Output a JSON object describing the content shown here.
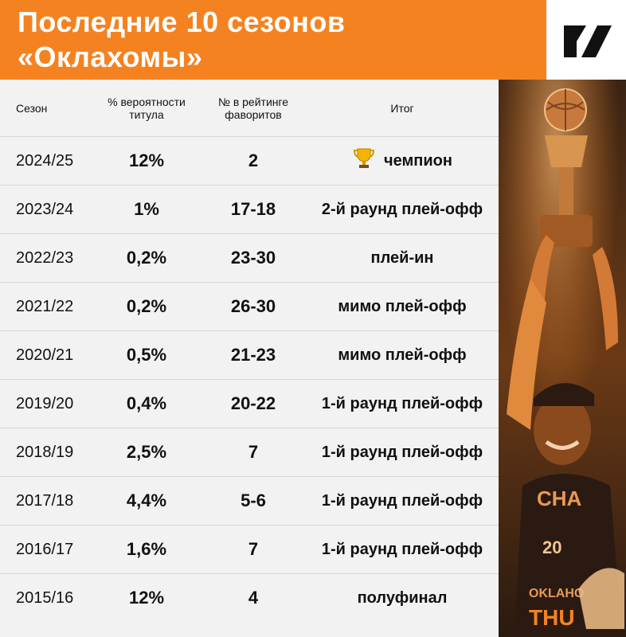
{
  "title_line1": "Последние 10 сезонов",
  "title_line2": "«Оклахомы»",
  "columns": {
    "season": "Сезон",
    "prob_line1": "% вероятности",
    "prob_line2": "титула",
    "rank_line1": "№ в рейтинге",
    "rank_line2": "фаворитов",
    "result": "Итог"
  },
  "rows": [
    {
      "season": "2024/25",
      "prob": "12%",
      "rank": "2",
      "result": "чемпион",
      "trophy": true
    },
    {
      "season": "2023/24",
      "prob": "1%",
      "rank": "17-18",
      "result": "2-й раунд плей-офф"
    },
    {
      "season": "2022/23",
      "prob": "0,2%",
      "rank": "23-30",
      "result": "плей-ин"
    },
    {
      "season": "2021/22",
      "prob": "0,2%",
      "rank": "26-30",
      "result": "мимо плей-офф"
    },
    {
      "season": "2020/21",
      "prob": "0,5%",
      "rank": "21-23",
      "result": "мимо плей-офф"
    },
    {
      "season": "2019/20",
      "prob": "0,4%",
      "rank": "20-22",
      "result": "1-й раунд плей-офф"
    },
    {
      "season": "2018/19",
      "prob": "2,5%",
      "rank": "7",
      "result": "1-й раунд плей-офф"
    },
    {
      "season": "2017/18",
      "prob": "4,4%",
      "rank": "5-6",
      "result": "1-й раунд плей-офф"
    },
    {
      "season": "2016/17",
      "prob": "1,6%",
      "rank": "7",
      "result": "1-й раунд плей-офф"
    },
    {
      "season": "2015/16",
      "prob": "12%",
      "rank": "4",
      "result": "полуфинал"
    }
  ],
  "icons": {
    "logo": "brand-logo-icon",
    "trophy": "trophy-icon"
  },
  "colors": {
    "accent": "#f58220",
    "background": "#f2f2f2"
  }
}
